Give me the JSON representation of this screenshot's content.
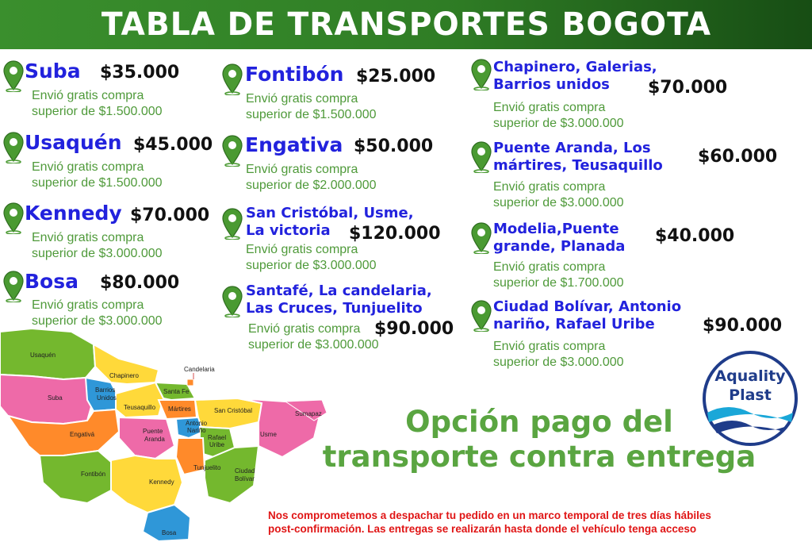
{
  "title": "TABLA DE TRANSPORTES BOGOTA",
  "zones": [
    {
      "name": "Suba",
      "price": "$35.000",
      "note1": "Envió gratis compra",
      "note2": "superior de $1.500.000"
    },
    {
      "name": "Usaquén",
      "price": "$45.000",
      "note1": "Envió gratis compra",
      "note2": "superior de $1.500.000"
    },
    {
      "name": "Kennedy",
      "price": "$70.000",
      "note1": "Envió gratis compra",
      "note2": "superior de $3.000.000"
    },
    {
      "name": "Bosa",
      "price": "$80.000",
      "note1": "Envió gratis compra",
      "note2": "superior de $3.000.000"
    },
    {
      "name": "Fontibón",
      "price": "$25.000",
      "note1": "Envió gratis compra",
      "note2": "superior de $1.500.000"
    },
    {
      "name": "Engativa",
      "price": "$50.000",
      "note1": "Envió gratis compra",
      "note2": "superior de $2.000.000"
    },
    {
      "name1": "San Cristóbal, Usme,",
      "name2": "La victoria",
      "price": "$120.000",
      "note1": "Envió gratis compra",
      "note2": "superior de $3.000.000"
    },
    {
      "name1": "Santafé, La candelaria,",
      "name2": "Las Cruces, Tunjuelito",
      "price": "$90.000",
      "note1": "Envió gratis compra",
      "note2": "superior de $3.000.000"
    },
    {
      "name1": "Chapinero, Galerias,",
      "name2": "Barrios unidos",
      "price": "$70.000",
      "note1": "Envió gratis compra",
      "note2": "superior de $3.000.000"
    },
    {
      "name1": "Puente Aranda, Los",
      "name2": "mártires, Teusaquillo",
      "price": "$60.000",
      "note1": "Envió gratis compra",
      "note2": "superior de $3.000.000"
    },
    {
      "name1": "Modelia,Puente",
      "name2": "grande, Planada",
      "price": "$40.000",
      "note1": "Envió gratis compra",
      "note2": "superior de $1.700.000"
    },
    {
      "name1": "Ciudad Bolívar, Antonio",
      "name2": "nariño, Rafael Uribe",
      "price": "$90.000",
      "note1": "Envió gratis compra",
      "note2": "superior de $3.000.000"
    }
  ],
  "map_labels": {
    "usaquen": "Usaquén",
    "suba": "Suba",
    "barrios_unidos_1": "Barrios",
    "barrios_unidos_2": "Unidos",
    "chapinero": "Chapinero",
    "candelaria": "Candelaria",
    "santa_fe": "Santa Fe",
    "teusaquillo": "Teusaquillo",
    "martires": "Mártires",
    "san_cristobal": "San Cristóbal",
    "sumapaz": "Sumapaz",
    "engativa": "Engativá",
    "puente_aranda_1": "Puente",
    "puente_aranda_2": "Aranda",
    "antonio_narino_1": "Antonio",
    "antonio_narino_2": "Nariño",
    "rafael_uribe_1": "Rafael",
    "rafael_uribe_2": "Uribe",
    "usme": "Usme",
    "fontibon": "Fontibón",
    "kennedy": "Kennedy",
    "tunjuelito": "Tunjuelito",
    "ciudad_bolivar_1": "Ciudad",
    "ciudad_bolivar_2": "Bolívar",
    "bosa": "Bosa"
  },
  "payment_line1": "Opción pago del",
  "payment_line2": "transporte contra entrega",
  "footer_line1": "Nos comprometemos a despachar tu pedido en un marco temporal de tres días hábiles",
  "footer_line2": "post-confirmación.  Las entregas se realizarán hasta donde el vehículo tenga acceso",
  "logo_line1": "Aquality",
  "logo_line2": "Plast",
  "colors": {
    "banner": "#3a8f2d",
    "zone_name": "#2222dd",
    "note": "#4f9a3a",
    "payment": "#5aa541",
    "footer": "#e01515",
    "pin": "#4a9a32"
  }
}
